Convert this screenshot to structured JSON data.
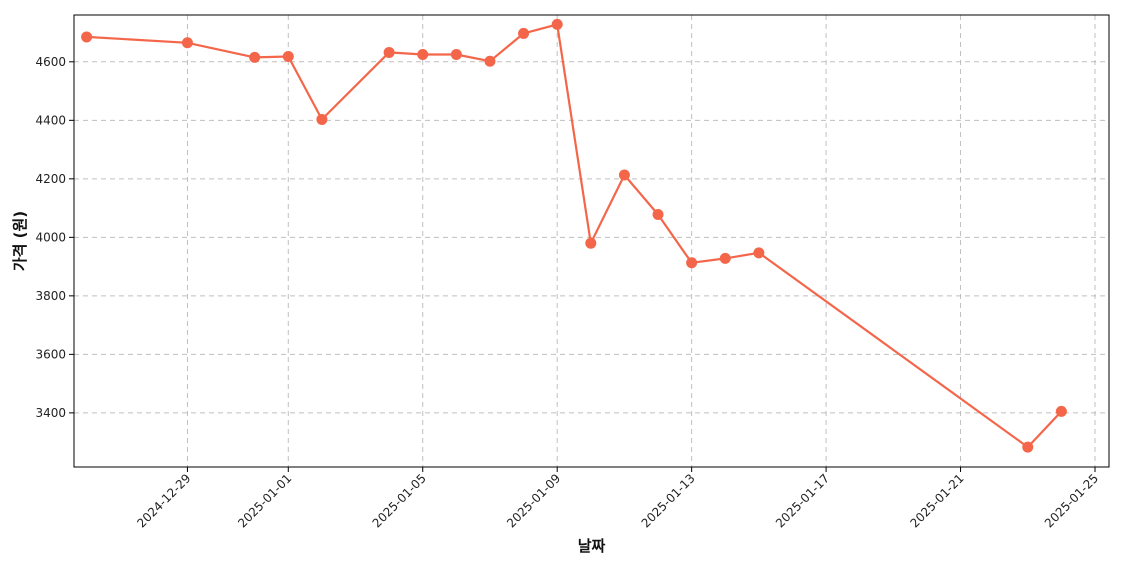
{
  "chart_data": {
    "type": "line",
    "title": "",
    "xlabel": "날짜",
    "ylabel": "가격 (원)",
    "x_ticks": [
      "2024-12-29",
      "2025-01-01",
      "2025-01-05",
      "2025-01-09",
      "2025-01-13",
      "2025-01-17",
      "2025-01-21",
      "2025-01-25"
    ],
    "y_ticks": [
      3400,
      3600,
      3800,
      4000,
      4200,
      4400,
      4600
    ],
    "xlim": [
      "2024-12-25T15:00",
      "2025-01-25T10:00"
    ],
    "ylim": [
      3215,
      4760
    ],
    "grid": true,
    "color": "#f4664a",
    "series": [
      {
        "points": [
          {
            "x": "2024-12-26",
            "y": 4685
          },
          {
            "x": "2024-12-29",
            "y": 4665
          },
          {
            "x": "2024-12-31",
            "y": 4615
          },
          {
            "x": "2025-01-01",
            "y": 4618
          },
          {
            "x": "2025-01-02",
            "y": 4403
          },
          {
            "x": "2025-01-04",
            "y": 4632
          },
          {
            "x": "2025-01-05",
            "y": 4625
          },
          {
            "x": "2025-01-06",
            "y": 4625
          },
          {
            "x": "2025-01-07",
            "y": 4602
          },
          {
            "x": "2025-01-08",
            "y": 4697
          },
          {
            "x": "2025-01-09",
            "y": 4728
          },
          {
            "x": "2025-01-10",
            "y": 3980
          },
          {
            "x": "2025-01-11",
            "y": 4213
          },
          {
            "x": "2025-01-12",
            "y": 4078
          },
          {
            "x": "2025-01-13",
            "y": 3913
          },
          {
            "x": "2025-01-14",
            "y": 3928
          },
          {
            "x": "2025-01-15",
            "y": 3947
          },
          {
            "x": "2025-01-23",
            "y": 3283
          },
          {
            "x": "2025-01-24",
            "y": 3405
          }
        ]
      }
    ]
  }
}
